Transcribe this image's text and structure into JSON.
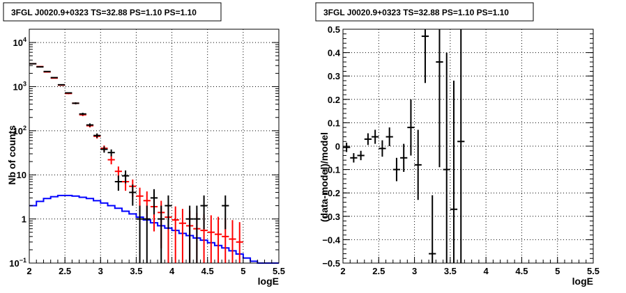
{
  "chart_data": [
    {
      "type": "histogram",
      "title": "3FGL J0020.9+0323 TS=32.88 PS=1.10 PS=1.10",
      "xlabel": "logE",
      "ylabel": "Nb of counts",
      "xlim": [
        2,
        5.5
      ],
      "ylim": [
        0.1,
        20000
      ],
      "yscale": "log",
      "grid": true,
      "xticks": [
        "2",
        "2.5",
        "3",
        "3.5",
        "4",
        "4.5",
        "5",
        "5.5"
      ],
      "yticks": [
        "10^-1",
        "1",
        "10",
        "10^2",
        "10^3",
        "10^4"
      ],
      "series": [
        {
          "color": "#000000",
          "style": "points",
          "x": [
            2.05,
            2.15,
            2.25,
            2.35,
            2.45,
            2.55,
            2.65,
            2.75,
            2.85,
            2.95,
            3.05,
            3.15,
            3.25,
            3.35,
            3.45,
            3.55,
            3.65,
            3.75,
            3.85,
            3.95,
            4.05,
            4.15,
            4.25,
            4.35,
            4.45,
            4.55,
            4.65,
            4.75
          ],
          "y": [
            3300,
            2800,
            2200,
            1600,
            1100,
            720,
            420,
            240,
            135,
            78,
            38,
            32,
            7,
            9.5,
            4,
            1,
            1,
            3,
            1,
            2,
            0,
            0,
            1,
            1,
            2,
            0,
            0,
            2
          ]
        },
        {
          "color": "#ff0000",
          "style": "points",
          "x": [
            2.05,
            2.15,
            2.25,
            2.35,
            2.45,
            2.55,
            2.65,
            2.75,
            2.85,
            2.95,
            3.05,
            3.15,
            3.25,
            3.35,
            3.45,
            3.55,
            3.65,
            3.75,
            3.85,
            3.95,
            4.05,
            4.15,
            4.25,
            4.35,
            4.45,
            4.55,
            4.65,
            4.75,
            4.85,
            4.95
          ],
          "y": [
            3300,
            2850,
            2150,
            1560,
            1080,
            700,
            420,
            230,
            130,
            75,
            40,
            22,
            12,
            7,
            5.5,
            3.3,
            2.6,
            1.9,
            1.4,
            1.1,
            0.95,
            0.8,
            0.7,
            0.6,
            0.55,
            0.5,
            0.45,
            0.4,
            0.35,
            0.3
          ]
        },
        {
          "color": "#0000ff",
          "style": "step",
          "x": [
            2.05,
            2.15,
            2.25,
            2.35,
            2.45,
            2.55,
            2.65,
            2.75,
            2.85,
            2.95,
            3.05,
            3.15,
            3.25,
            3.35,
            3.45,
            3.55,
            3.65,
            3.75,
            3.85,
            3.95,
            4.05,
            4.15,
            4.25,
            4.35,
            4.45,
            4.55,
            4.65,
            4.75,
            4.85,
            4.95,
            5.05,
            5.15,
            5.25,
            5.35,
            5.45
          ],
          "y": [
            2.0,
            2.5,
            2.9,
            3.2,
            3.4,
            3.4,
            3.3,
            3.1,
            2.9,
            2.6,
            2.3,
            2.0,
            1.75,
            1.5,
            1.3,
            1.1,
            0.95,
            0.82,
            0.7,
            0.62,
            0.55,
            0.47,
            0.42,
            0.37,
            0.33,
            0.29,
            0.25,
            0.22,
            0.19,
            0.16,
            0.13,
            0.11,
            0.1,
            0.1,
            0.1
          ]
        }
      ]
    },
    {
      "type": "scatter",
      "title": "3FGL J0020.9+0323 TS=32.88 PS=1.10 PS=1.10",
      "xlabel": "logE",
      "ylabel": "(data-model)/model",
      "xlim": [
        2,
        5.5
      ],
      "ylim": [
        -0.5,
        0.5
      ],
      "grid": true,
      "xticks": [
        "2",
        "2.5",
        "3",
        "3.5",
        "4",
        "4.5",
        "5",
        "5.5"
      ],
      "yticks": [
        "−0.5",
        "−0.4",
        "−0.3",
        "−0.2",
        "−0.1",
        "0",
        "0.1",
        "0.2",
        "0.3",
        "0.4",
        "0.5"
      ],
      "series": [
        {
          "color": "#000000",
          "x": [
            2.05,
            2.15,
            2.25,
            2.35,
            2.45,
            2.55,
            2.65,
            2.75,
            2.85,
            2.95,
            3.05,
            3.15,
            3.25,
            3.35,
            3.45,
            3.55,
            3.65
          ],
          "y": [
            -0.005,
            -0.05,
            -0.04,
            0.03,
            0.04,
            -0.01,
            0.04,
            -0.1,
            -0.05,
            0.08,
            -0.08,
            0.47,
            -0.46,
            0.36,
            -0.1,
            -0.27,
            0.02
          ],
          "yerr": [
            0.02,
            0.02,
            0.02,
            0.025,
            0.03,
            0.035,
            0.04,
            0.05,
            0.06,
            0.12,
            0.15,
            0.2,
            0.25,
            0.45,
            0.5,
            0.55,
            0.6
          ]
        }
      ]
    }
  ]
}
